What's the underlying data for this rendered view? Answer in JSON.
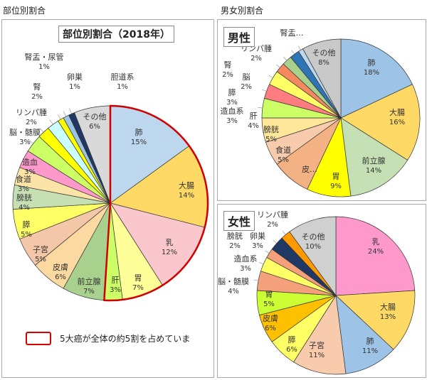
{
  "section_left": "部位別割合",
  "section_right": "男女別割合",
  "chart_data": [
    {
      "type": "pie",
      "title": "部位別割合（2018年）",
      "highlighted": [
        "肺",
        "大腸",
        "乳",
        "胃",
        "肝"
      ],
      "legend": "5大癌が全体の約5割を占めていま",
      "highlight_color": "#d00000",
      "slices": [
        {
          "label": "肺",
          "value": 15,
          "color": "#bdd7ee"
        },
        {
          "label": "大腸",
          "value": 14,
          "color": "#ffd966"
        },
        {
          "label": "乳",
          "value": 12,
          "color": "#fac8cc"
        },
        {
          "label": "胃",
          "value": 7,
          "color": "#ffff99"
        },
        {
          "label": "肝",
          "value": 3,
          "color": "#ccff66"
        },
        {
          "label": "前立腺",
          "value": 7,
          "color": "#a9d18e"
        },
        {
          "label": "皮膚",
          "value": 6,
          "color": "#fcd9a0"
        },
        {
          "label": "子宮",
          "value": 5,
          "color": "#f4c7a8"
        },
        {
          "label": "膵",
          "value": 5,
          "color": "#ffff66"
        },
        {
          "label": "膀胱",
          "value": 4,
          "color": "#c6e0b4"
        },
        {
          "label": "食道",
          "value": 3,
          "color": "#fce4a6"
        },
        {
          "label": "造血",
          "value": 3,
          "color": "#ff99cc"
        },
        {
          "label": "脳・髄膜",
          "value": 3,
          "color": "#ccff66"
        },
        {
          "label": "リンパ腫",
          "value": 2,
          "color": "#ffff00"
        },
        {
          "label": "腎",
          "value": 2,
          "color": "#ccffff"
        },
        {
          "label": "腎盂・尿管",
          "value": 1,
          "color": "#ffff00"
        },
        {
          "label": "卵巣",
          "value": 1,
          "color": "#9dc3e6"
        },
        {
          "label": "胆道系",
          "value": 1,
          "color": "#1f3864"
        },
        {
          "label": "その他",
          "value": 6,
          "color": "#d9d9d9"
        }
      ]
    },
    {
      "type": "pie",
      "title": "男性",
      "slices": [
        {
          "label": "肺",
          "value": 18,
          "color": "#9dc3e6"
        },
        {
          "label": "大腸",
          "value": 16,
          "color": "#ffd966"
        },
        {
          "label": "前立腺",
          "value": 14,
          "color": "#c5e0b4"
        },
        {
          "label": "胃",
          "value": 9,
          "color": "#ffff00"
        },
        {
          "label": "皮…",
          "value": 8,
          "color": "#f4b183",
          "hide_value": true
        },
        {
          "label": "食道",
          "value": 5,
          "color": "#f8cbad"
        },
        {
          "label": "膀胱",
          "value": 5,
          "color": "#ffe699"
        },
        {
          "label": "肝",
          "value": 4,
          "color": "#ccff66"
        },
        {
          "label": "造血系",
          "value": 3,
          "color": "#ff7c80"
        },
        {
          "label": "膵",
          "value": 3,
          "color": "#ffff66"
        },
        {
          "label": "脳",
          "value": 2,
          "color": "#f4895f"
        },
        {
          "label": "腎",
          "value": 2,
          "color": "#a9d18e"
        },
        {
          "label": "リンパ腫",
          "value": 2,
          "color": "#2e75b6"
        },
        {
          "label": "腎盂…",
          "value": 1,
          "color": "#bdd7ee",
          "hide_value": true
        },
        {
          "label": "その他",
          "value": 8,
          "color": "#c9c9c9"
        }
      ]
    },
    {
      "type": "pie",
      "title": "女性",
      "slices": [
        {
          "label": "乳",
          "value": 24,
          "color": "#ff99cc"
        },
        {
          "label": "大腸",
          "value": 13,
          "color": "#ffd966"
        },
        {
          "label": "肺",
          "value": 11,
          "color": "#9dc3e6"
        },
        {
          "label": "子宮",
          "value": 11,
          "color": "#f8cbad"
        },
        {
          "label": "膵",
          "value": 6,
          "color": "#ffff66"
        },
        {
          "label": "皮膚",
          "value": 6,
          "color": "#ffc000"
        },
        {
          "label": "胃",
          "value": 5,
          "color": "#ccff33"
        },
        {
          "label": "脳・髄膜",
          "value": 4,
          "color": "#f4a07a"
        },
        {
          "label": "造血系",
          "value": 3,
          "color": "#ffff66"
        },
        {
          "label": "膀胱",
          "value": 2,
          "color": "#f4a07a"
        },
        {
          "label": "卵巣",
          "value": 3,
          "color": "#1f3864"
        },
        {
          "label": "リンパ腫",
          "value": 2,
          "color": "#ff9900"
        },
        {
          "label": "その他",
          "value": 10,
          "color": "#d0d0d0"
        }
      ]
    }
  ]
}
